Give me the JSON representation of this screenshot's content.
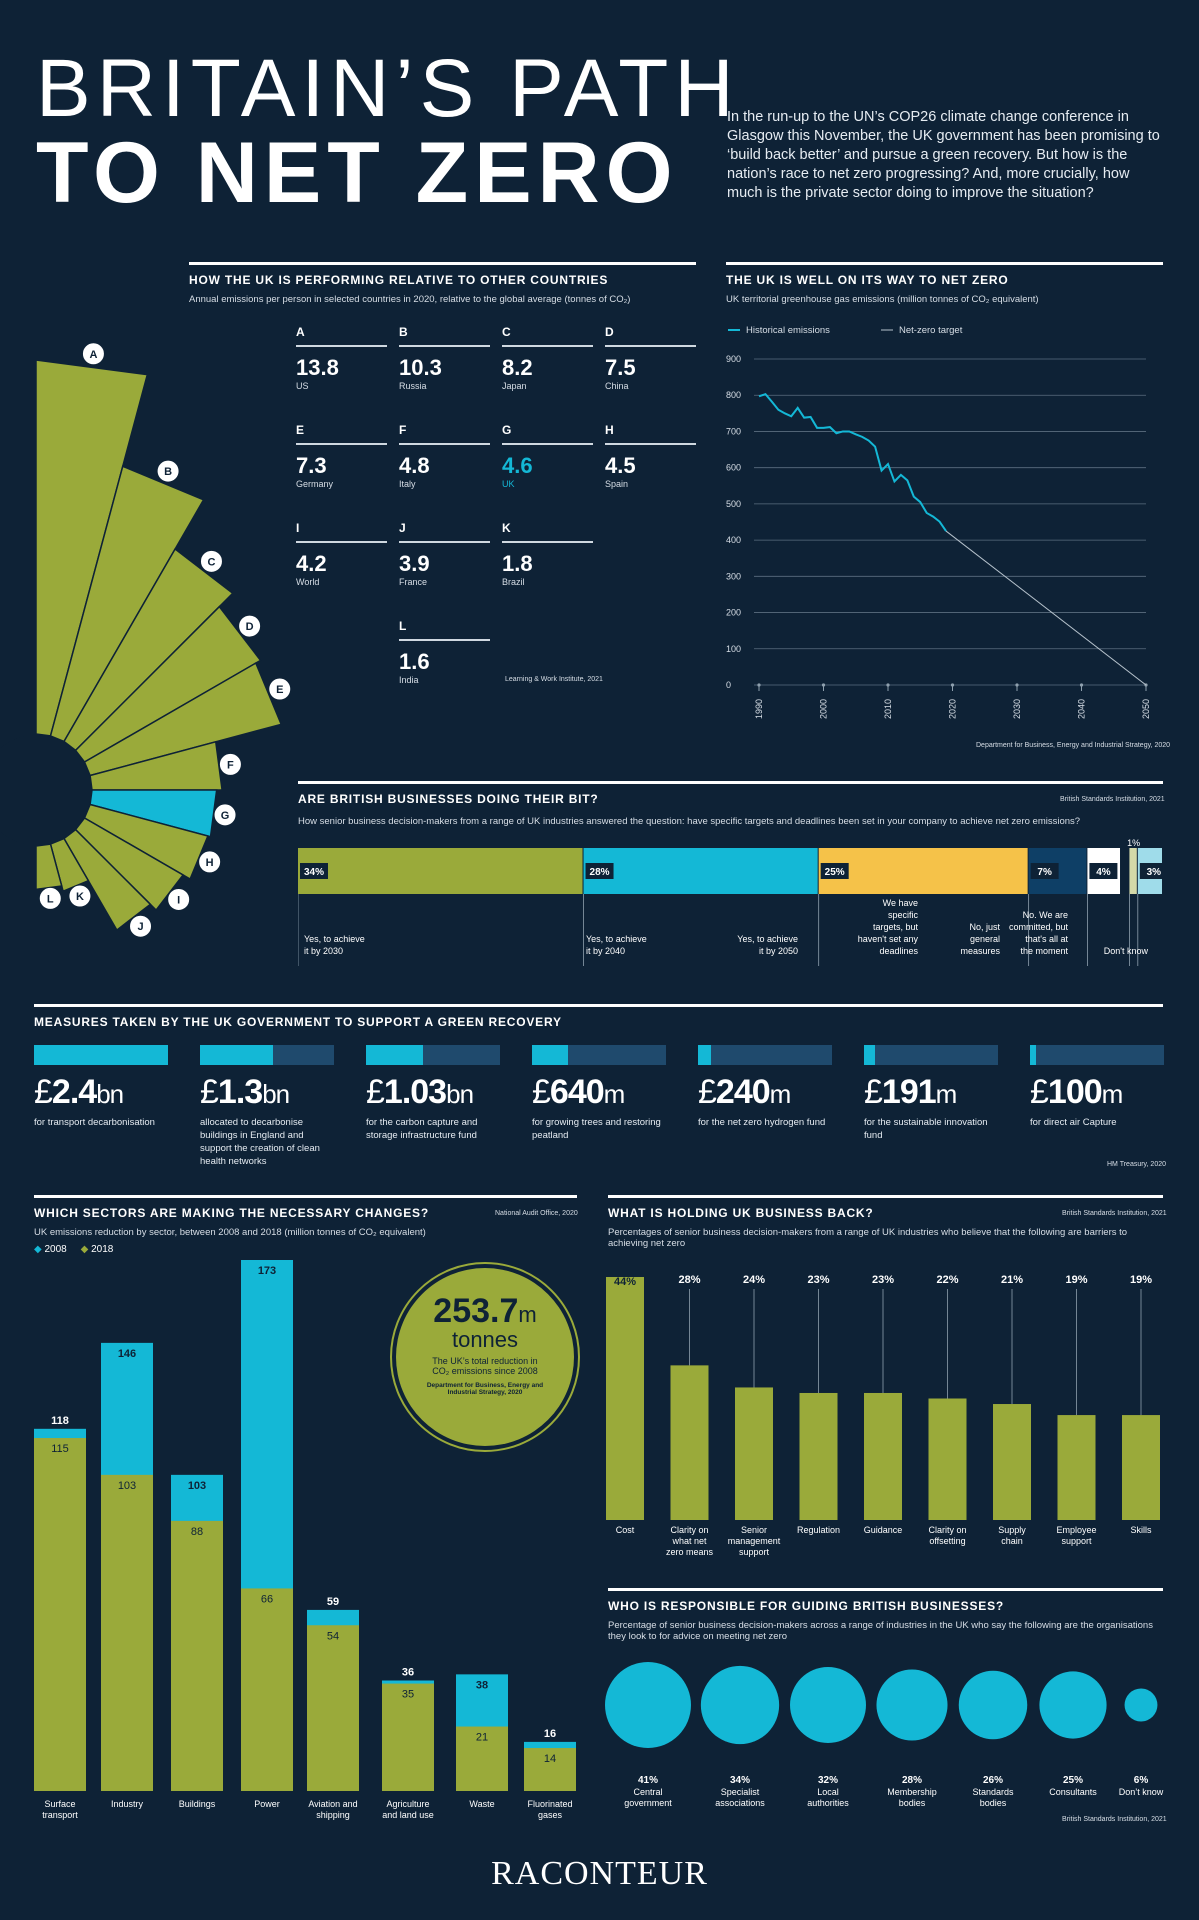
{
  "header": {
    "title_line1": "BRITAIN’S PATH",
    "title_line2": "TO NET ZERO",
    "intro": "In the run-up to the UN’s COP26 climate change conference in Glasgow this November, the UK government has been promising to ‘build back better’ and pursue a green recovery. But how is the nation’s race to net zero progressing? And, more crucially, how much is the private sector doing to improve the situation?"
  },
  "performance": {
    "heading": "HOW THE UK IS PERFORMING RELATIVE TO OTHER COUNTRIES",
    "subtitle": "Annual emissions per person in selected countries in 2020, relative to the global average (tonnes of CO₂)",
    "source": "Learning & Work Institute, 2021"
  },
  "netzero_line": {
    "heading": "THE UK IS WELL ON ITS WAY TO NET ZERO",
    "subtitle": "UK territorial greenhouse gas emissions (million tonnes of CO₂ equivalent)",
    "legend_hist": "Historical emissions",
    "legend_target": "Net-zero target",
    "source": "Department for Business, Energy and Industrial Strategy, 2020"
  },
  "businesses": {
    "heading": "ARE BRITISH BUSINESSES DOING THEIR BIT?",
    "source": "British Standards Institution, 2021",
    "subtitle": "How senior business decision-makers from a range of UK industries answered the question: have specific targets and deadlines been set in your company to achieve net zero emissions?"
  },
  "measures": {
    "heading": "MEASURES TAKEN BY THE UK GOVERNMENT TO SUPPORT A GREEN RECOVERY",
    "source": "HM Treasury, 2020",
    "items": [
      {
        "pre": "£",
        "num": "2.4",
        "unit": "bn",
        "desc": "for transport decarbonisation",
        "frac": 1.0
      },
      {
        "pre": "£",
        "num": "1.3",
        "unit": "bn",
        "desc": "allocated to decarbonise buildings in England and support the creation of clean health networks",
        "frac": 0.542
      },
      {
        "pre": "£",
        "num": "1.03",
        "unit": "bn",
        "desc": "for the carbon capture and storage infrastructure fund",
        "frac": 0.429
      },
      {
        "pre": "£",
        "num": "640",
        "unit": "m",
        "desc": "for growing trees and restoring peatland",
        "frac": 0.267
      },
      {
        "pre": "£",
        "num": "240",
        "unit": "m",
        "desc": "for the net zero hydrogen fund",
        "frac": 0.1
      },
      {
        "pre": "£",
        "num": "191",
        "unit": "m",
        "desc": "for the sustainable innovation fund",
        "frac": 0.08
      },
      {
        "pre": "£",
        "num": "100",
        "unit": "m",
        "desc": "for direct air Capture",
        "frac": 0.042
      }
    ]
  },
  "sectors": {
    "heading": "WHICH SECTORS ARE MAKING THE NECESSARY CHANGES?",
    "source": "National Audit Office, 2020",
    "subtitle": "UK emissions reduction by sector, between 2008 and 2018 (million tonnes of CO₂ equivalent)",
    "legend_2008": "2008",
    "legend_2018": "2018",
    "callout_value": "253.7",
    "callout_unit": "m",
    "callout_word": "tonnes",
    "callout_desc": "The UK’s total reduction in CO₂ emissions since 2008",
    "callout_source": "Department for Business, Energy and Industrial Strategy, 2020"
  },
  "barriers": {
    "heading": "WHAT IS HOLDING UK BUSINESS BACK?",
    "source": "British Standards Institution, 2021",
    "subtitle": "Percentages of senior business decision-makers from a range of UK industries who believe that the following are barriers to achieving net zero"
  },
  "responsible": {
    "heading": "WHO IS RESPONSIBLE FOR GUIDING BRITISH BUSINESSES?",
    "subtitle": "Percentage of senior business decision-makers across a range of industries in the UK who say the following are the organisations they look to for advice on meeting net zero",
    "source": "British Standards Institution, 2021"
  },
  "footer": {
    "brand": "RACONTEUR"
  },
  "colors": {
    "bg": "#0e2236",
    "olive": "#9aaa3a",
    "cyan": "#14b8d6",
    "yellow": "#f5c249",
    "navy": "#0e3f66",
    "grey": "#d4d9a8"
  },
  "chart_data": [
    {
      "id": "country_emissions",
      "type": "bar",
      "categories": [
        "US",
        "Russia",
        "Japan",
        "China",
        "Germany",
        "Italy",
        "UK",
        "Spain",
        "World",
        "France",
        "Brazil",
        "India"
      ],
      "letters": [
        "A",
        "B",
        "C",
        "D",
        "E",
        "F",
        "G",
        "H",
        "I",
        "J",
        "K",
        "L"
      ],
      "values": [
        13.8,
        10.3,
        8.2,
        7.5,
        7.3,
        4.8,
        4.6,
        4.5,
        4.2,
        3.9,
        1.8,
        1.6
      ],
      "labels": [
        "13.8",
        "10.3",
        "8.2",
        "7.5",
        "7.3",
        "4.8",
        "4.6",
        "4.5",
        "4.2",
        "3.9",
        "1.8",
        "1.6"
      ],
      "highlight": "UK"
    },
    {
      "id": "uk_emissions_line",
      "type": "line",
      "ylim": [
        0,
        900
      ],
      "yticks": [
        0,
        100,
        200,
        300,
        400,
        500,
        600,
        700,
        800,
        900
      ],
      "xticks": [
        1990,
        2000,
        2010,
        2020,
        2030,
        2040,
        2050
      ],
      "series": [
        {
          "name": "Historical emissions",
          "x": [
            1990,
            1991,
            1992,
            1993,
            1994,
            1995,
            1996,
            1997,
            1998,
            1999,
            2000,
            2001,
            2002,
            2003,
            2004,
            2005,
            2006,
            2007,
            2008,
            2009,
            2010,
            2011,
            2012,
            2013,
            2014,
            2015,
            2016,
            2017,
            2018,
            2019
          ],
          "y": [
            797,
            803,
            782,
            760,
            750,
            742,
            765,
            738,
            740,
            710,
            710,
            712,
            695,
            700,
            700,
            692,
            685,
            675,
            658,
            592,
            610,
            562,
            580,
            565,
            520,
            505,
            475,
            465,
            451,
            425
          ]
        },
        {
          "name": "Net-zero target",
          "x": [
            2019,
            2050
          ],
          "y": [
            425,
            0
          ]
        }
      ]
    },
    {
      "id": "business_targets",
      "type": "bar",
      "categories": [
        "Yes, to achieve it by 2030",
        "Yes, to achieve it by 2040",
        "Yes, to achieve it by 2050",
        "We have specific targets, but haven't set any deadlines",
        "No, just general measures",
        "No. We are committed, but that's all at the moment",
        "",
        "Don't know"
      ],
      "values": [
        34,
        28,
        25,
        7,
        4,
        1,
        1,
        3
      ],
      "labels": [
        "34%",
        "28%",
        "25%",
        "7%",
        "4%",
        "",
        "1%",
        "3%"
      ]
    },
    {
      "id": "sectors",
      "type": "bar",
      "categories": [
        "Surface transport",
        "Industry",
        "Buildings",
        "Power",
        "Aviation and shipping",
        "Agriculture and land use",
        "Waste",
        "Fluorinated gases"
      ],
      "series": [
        {
          "name": "2008",
          "values": [
            118,
            146,
            103,
            173,
            59,
            36,
            38,
            16
          ]
        },
        {
          "name": "2018",
          "values": [
            115,
            103,
            88,
            66,
            54,
            35,
            21,
            14
          ]
        }
      ]
    },
    {
      "id": "barriers",
      "type": "bar",
      "categories": [
        "Cost",
        "Clarity on what net zero means",
        "Senior management support",
        "Regulation",
        "Guidance",
        "Clarity on offsetting",
        "Supply chain",
        "Employee support",
        "Skills"
      ],
      "values": [
        44,
        28,
        24,
        23,
        23,
        22,
        21,
        19,
        19
      ],
      "labels": [
        "44%",
        "28%",
        "24%",
        "23%",
        "23%",
        "22%",
        "21%",
        "19%",
        "19%"
      ]
    },
    {
      "id": "advisors",
      "type": "bar",
      "categories": [
        "Central government",
        "Specialist associations",
        "Local authorities",
        "Membership bodies",
        "Standards bodies",
        "Consultants",
        "Don’t know"
      ],
      "values": [
        41,
        34,
        32,
        28,
        26,
        25,
        6
      ],
      "labels": [
        "41%",
        "34%",
        "32%",
        "28%",
        "26%",
        "25%",
        "6%"
      ]
    }
  ]
}
